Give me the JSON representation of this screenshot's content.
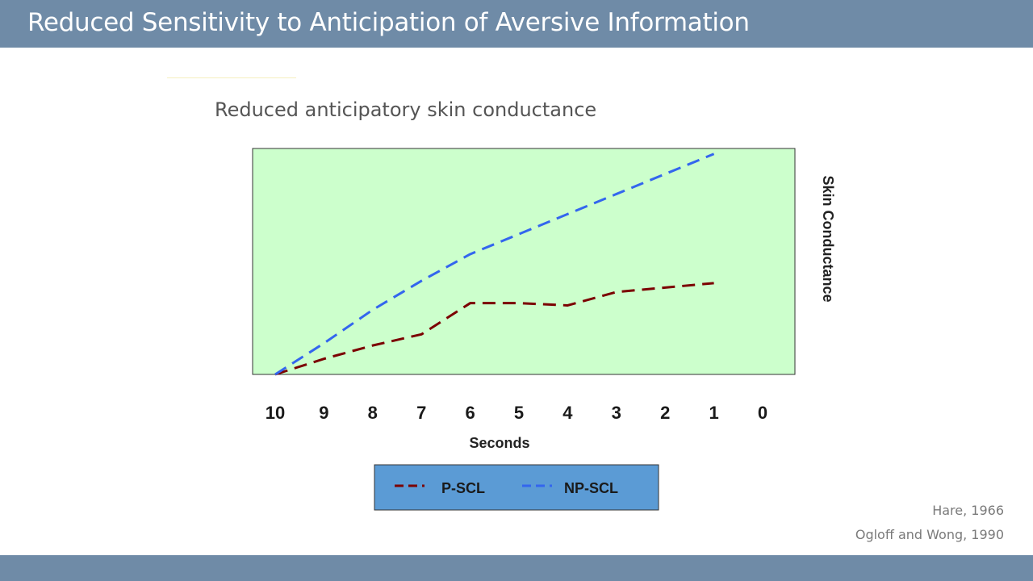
{
  "slide": {
    "title": "Reduced Sensitivity to Anticipation of Aversive Information",
    "subtitle": "Reduced anticipatory skin conductance",
    "citations": [
      "Hare, 1966",
      "Ogloff and Wong, 1990"
    ]
  },
  "colors": {
    "title_bar": "#6f8ba7",
    "plot_background": "#ccffcc",
    "legend_background": "#5b9bd5",
    "p_scl": "#7b0000",
    "np_scl": "#3366ee"
  },
  "chart_data": {
    "type": "line",
    "title": "",
    "xlabel": "Seconds",
    "ylabel": "Skin Conductance",
    "x_ticks": [
      10,
      9,
      8,
      7,
      6,
      5,
      4,
      3,
      2,
      1,
      0
    ],
    "xlim": [
      10,
      0
    ],
    "ylim": [
      0,
      100
    ],
    "y_tick_labels": false,
    "grid": false,
    "legend_position": "bottom",
    "series": [
      {
        "name": "P-SCL",
        "line_style": "dashed",
        "x": [
          10,
          9,
          8,
          7,
          6,
          5,
          4,
          3,
          2,
          1
        ],
        "y": [
          0,
          7,
          13,
          18,
          32,
          32,
          31,
          37,
          39,
          41
        ]
      },
      {
        "name": "NP-SCL",
        "line_style": "dashed",
        "x": [
          10,
          9,
          8,
          7,
          6,
          5,
          4,
          3,
          2,
          1
        ],
        "y": [
          0,
          14,
          29,
          42,
          54,
          63,
          72,
          81,
          90,
          99
        ]
      }
    ]
  }
}
